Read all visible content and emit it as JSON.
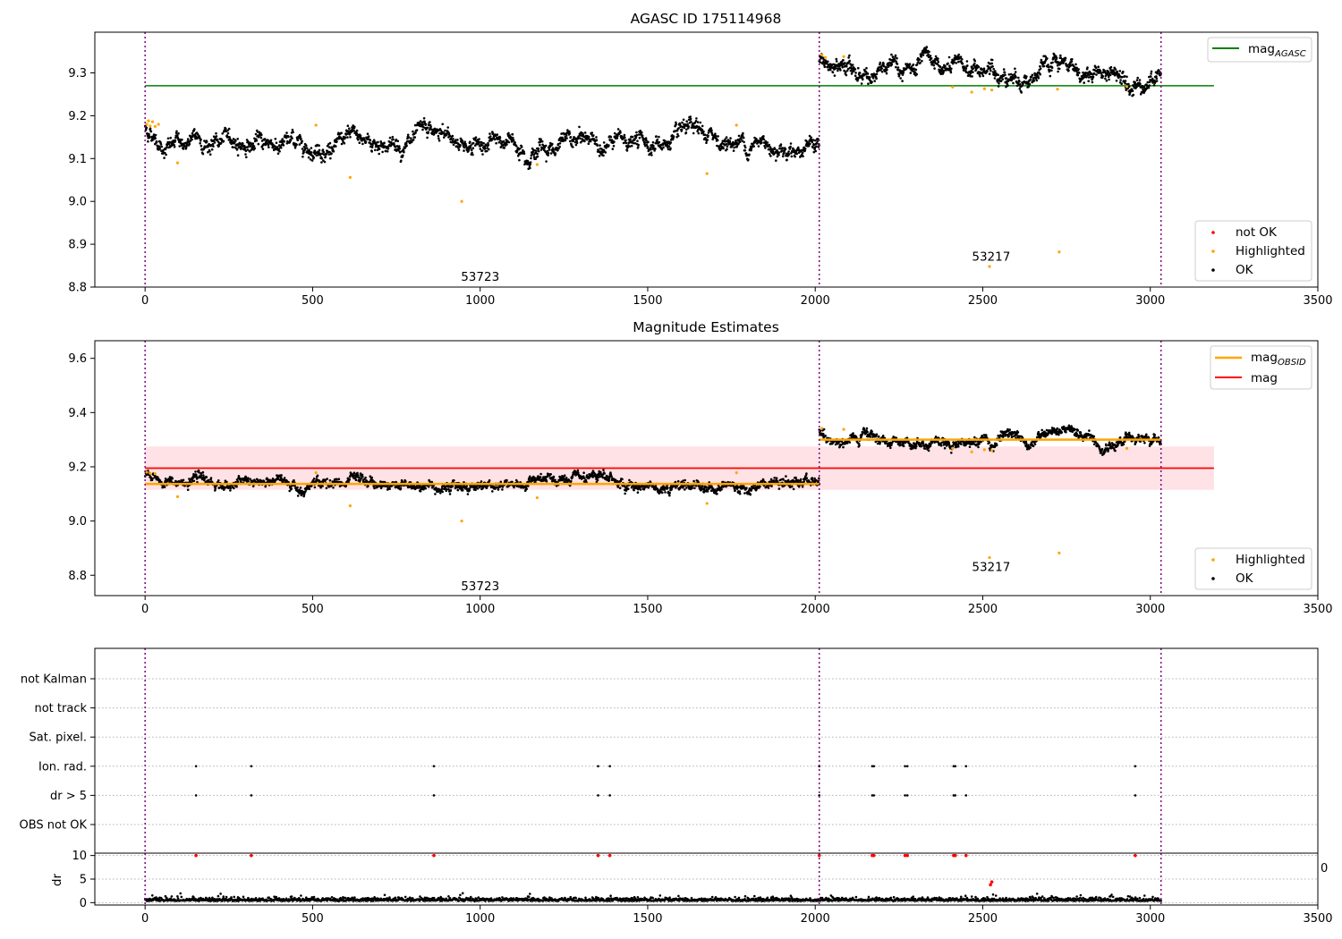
{
  "chart_data": [
    {
      "type": "scatter",
      "title": "AGASC ID 175114968",
      "xlim": [
        -150,
        3500
      ],
      "ylim": [
        8.8,
        9.395
      ],
      "xticks": [
        0,
        500,
        1000,
        1500,
        2000,
        2500,
        3000,
        3500
      ],
      "yticks": [
        "8.8",
        "8.9",
        "9.0",
        "9.1",
        "9.2",
        "9.3"
      ],
      "obs_boundaries": [
        0,
        2012,
        3032
      ],
      "lines": [
        {
          "name": "mag_AGASC",
          "legend_main": "mag",
          "legend_sub": "AGASC",
          "color": "#008000",
          "x": [
            0,
            3190
          ],
          "y": [
            9.27,
            9.27
          ]
        }
      ],
      "segments": [
        {
          "x_start": 0,
          "x_end": 2012,
          "level": 9.137,
          "spread": 0.011,
          "start_bump": 9.175
        },
        {
          "x_start": 2012,
          "x_end": 3032,
          "level": 9.3,
          "spread": 0.011,
          "start_bump": 9.335
        }
      ],
      "highlighted_points": [
        {
          "x": 5,
          "y": 9.18
        },
        {
          "x": 10,
          "y": 9.188
        },
        {
          "x": 15,
          "y": 9.176
        },
        {
          "x": 22,
          "y": 9.186
        },
        {
          "x": 30,
          "y": 9.175
        },
        {
          "x": 40,
          "y": 9.18
        },
        {
          "x": 97,
          "y": 9.09
        },
        {
          "x": 510,
          "y": 9.178
        },
        {
          "x": 612,
          "y": 9.056
        },
        {
          "x": 945,
          "y": 9.0
        },
        {
          "x": 1170,
          "y": 9.086
        },
        {
          "x": 1677,
          "y": 9.065
        },
        {
          "x": 1765,
          "y": 9.178
        },
        {
          "x": 2020,
          "y": 9.342
        },
        {
          "x": 2030,
          "y": 9.336
        },
        {
          "x": 2085,
          "y": 9.338
        },
        {
          "x": 2410,
          "y": 9.267
        },
        {
          "x": 2467,
          "y": 9.255
        },
        {
          "x": 2505,
          "y": 9.263
        },
        {
          "x": 2527,
          "y": 9.26
        },
        {
          "x": 2520,
          "y": 8.848
        },
        {
          "x": 2723,
          "y": 9.262
        },
        {
          "x": 2728,
          "y": 8.882
        },
        {
          "x": 2930,
          "y": 9.268
        }
      ],
      "annotations": [
        {
          "text": "53723",
          "x": 1000,
          "y": 8.815
        },
        {
          "text": "53217",
          "x": 2525,
          "y": 8.862
        }
      ],
      "legend_scatter": [
        "not OK",
        "Highlighted",
        "OK"
      ],
      "legend_colors": {
        "not OK": "#ff0000",
        "Highlighted": "#ffa500",
        "OK": "#000000"
      }
    },
    {
      "type": "scatter",
      "title": "Magnitude Estimates",
      "xlim": [
        -150,
        3500
      ],
      "ylim": [
        8.725,
        9.665
      ],
      "xticks": [
        0,
        500,
        1000,
        1500,
        2000,
        2500,
        3000,
        3500
      ],
      "yticks": [
        "8.8",
        "9.0",
        "9.2",
        "9.4",
        "9.6"
      ],
      "obs_boundaries": [
        0,
        2012,
        3032
      ],
      "mag": {
        "value": 9.195,
        "band": [
          9.115,
          9.275
        ],
        "x": [
          0,
          3190
        ],
        "color": "#ff0000",
        "band_color": "#ffdde0"
      },
      "mag_obsid": [
        {
          "x_start": 0,
          "x_end": 2012,
          "value": 9.137
        },
        {
          "x_start": 2012,
          "x_end": 3032,
          "value": 9.3
        }
      ],
      "segments": [
        {
          "x_start": 0,
          "x_end": 2012,
          "level": 9.137,
          "spread": 0.011,
          "start_bump": 9.175
        },
        {
          "x_start": 2012,
          "x_end": 3032,
          "level": 9.3,
          "spread": 0.011,
          "start_bump": 9.335
        }
      ],
      "highlighted_points": [
        {
          "x": 5,
          "y": 9.18
        },
        {
          "x": 15,
          "y": 9.176
        },
        {
          "x": 30,
          "y": 9.175
        },
        {
          "x": 97,
          "y": 9.09
        },
        {
          "x": 510,
          "y": 9.178
        },
        {
          "x": 612,
          "y": 9.056
        },
        {
          "x": 945,
          "y": 9.0
        },
        {
          "x": 1170,
          "y": 9.086
        },
        {
          "x": 1677,
          "y": 9.065
        },
        {
          "x": 1765,
          "y": 9.178
        },
        {
          "x": 2020,
          "y": 9.342
        },
        {
          "x": 2085,
          "y": 9.338
        },
        {
          "x": 2410,
          "y": 9.268
        },
        {
          "x": 2467,
          "y": 9.255
        },
        {
          "x": 2505,
          "y": 9.263
        },
        {
          "x": 2527,
          "y": 9.26
        },
        {
          "x": 2520,
          "y": 8.865
        },
        {
          "x": 2728,
          "y": 8.882
        },
        {
          "x": 2930,
          "y": 9.268
        }
      ],
      "annotations": [
        {
          "text": "53723",
          "x": 1000,
          "y": 8.745
        },
        {
          "text": "53217",
          "x": 2525,
          "y": 8.815
        }
      ],
      "legend_lines": [
        {
          "label_main": "mag",
          "label_sub": "OBSID",
          "color": "#ffa500"
        },
        {
          "label_main": "mag",
          "label_sub": "",
          "color": "#ff0000"
        }
      ],
      "legend_scatter": [
        "Highlighted",
        "OK"
      ]
    },
    {
      "type": "scatter",
      "title": "",
      "xlim": [
        -150,
        3500
      ],
      "obs_boundaries": [
        0,
        2012,
        3032
      ],
      "flag_rows": [
        "not Kalman",
        "not track",
        "Sat. pixel.",
        "Ion. rad.",
        "dr > 5",
        "OBS not OK"
      ],
      "flag_points_ion_rad": [
        152,
        317,
        862,
        1352,
        1387,
        2012,
        2170,
        2175,
        2268,
        2275,
        2413,
        2418,
        2450,
        2955
      ],
      "flag_points_dr5": [
        152,
        317,
        862,
        1352,
        1387,
        2012,
        2170,
        2175,
        2268,
        2275,
        2413,
        2418,
        2450,
        2955
      ]
    },
    {
      "type": "scatter",
      "title": "",
      "ylabel": "dr",
      "xlim": [
        -150,
        3500
      ],
      "ylim": [
        -0.5,
        10.5
      ],
      "xticks": [
        0,
        500,
        1000,
        1500,
        2000,
        2500,
        3000,
        3500
      ],
      "yticks": [
        "0",
        "5",
        "10"
      ],
      "overflow_tick_fragment": "0",
      "obs_boundaries": [
        0,
        2012,
        3032
      ],
      "dr_baseline_mean": 0.5,
      "dr_outliers_red": [
        {
          "x": 152,
          "y": 10
        },
        {
          "x": 317,
          "y": 10
        },
        {
          "x": 862,
          "y": 10
        },
        {
          "x": 1352,
          "y": 10
        },
        {
          "x": 1387,
          "y": 10
        },
        {
          "x": 2012,
          "y": 10
        },
        {
          "x": 2170,
          "y": 10
        },
        {
          "x": 2175,
          "y": 10
        },
        {
          "x": 2268,
          "y": 10
        },
        {
          "x": 2275,
          "y": 10
        },
        {
          "x": 2413,
          "y": 10
        },
        {
          "x": 2418,
          "y": 10
        },
        {
          "x": 2450,
          "y": 10
        },
        {
          "x": 2955,
          "y": 10
        },
        {
          "x": 2523,
          "y": 3.8
        },
        {
          "x": 2527,
          "y": 4.4
        }
      ]
    }
  ]
}
